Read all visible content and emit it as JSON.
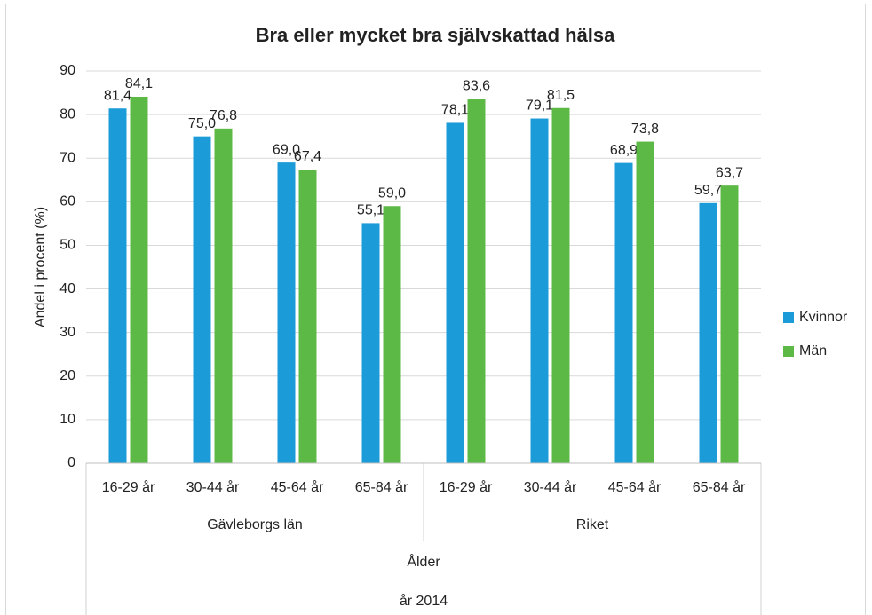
{
  "chart_data": {
    "type": "bar",
    "title": "Bra eller mycket bra självskattad hälsa",
    "ylabel": "Andel i procent (%)",
    "xlabel": "Ålder",
    "note": "år 2014",
    "groups": [
      "Gävleborgs län",
      "Riket"
    ],
    "categories": [
      "16-29 år",
      "30-44 år",
      "45-64 år",
      "65-84 år",
      "16-29 år",
      "30-44 år",
      "45-64 år",
      "65-84 år"
    ],
    "series": [
      {
        "name": "Kvinnor",
        "color": "#1b9bd7",
        "values": [
          81.4,
          75.0,
          69.0,
          55.1,
          78.1,
          79.1,
          68.9,
          59.7
        ],
        "value_labels": [
          "81,4",
          "75,0",
          "69,0",
          "55,1",
          "78,1",
          "79,1",
          "68,9",
          "59,7"
        ]
      },
      {
        "name": "Män",
        "color": "#5cb946",
        "values": [
          84.1,
          76.8,
          67.4,
          59.0,
          83.6,
          81.5,
          73.8,
          63.7
        ],
        "value_labels": [
          "84,1",
          "76,8",
          "67,4",
          "59,0",
          "83,6",
          "81,5",
          "73,8",
          "63,7"
        ]
      }
    ],
    "ylim": [
      0,
      90
    ],
    "yticks": [
      0,
      10,
      20,
      30,
      40,
      50,
      60,
      70,
      80,
      90
    ],
    "grid": true,
    "legend": "right"
  }
}
